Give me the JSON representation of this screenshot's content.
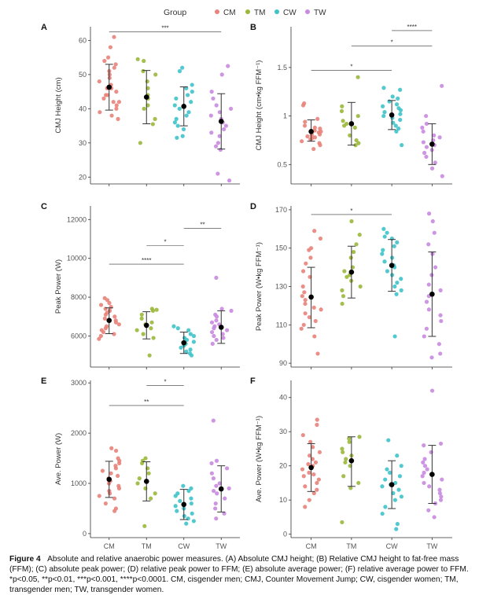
{
  "legend": {
    "title": "Group",
    "groups": [
      "CM",
      "TM",
      "CW",
      "TW"
    ]
  },
  "colors": {
    "CM": "#E8837A",
    "TM": "#9BB83B",
    "CW": "#3EC3C9",
    "TW": "#C98AE0",
    "mean": "#000000",
    "bar": "#333333"
  },
  "chart_data": [
    {
      "type": "scatter",
      "panel": "A",
      "ylabel": "CMJ Height (cm)",
      "categories": [
        "CM",
        "TM",
        "CW",
        "TW"
      ],
      "ylim": [
        18,
        64
      ],
      "yticks": [
        20,
        30,
        40,
        50,
        60
      ],
      "series": [
        {
          "name": "CM",
          "mean": 46.3,
          "lower": 39.6,
          "upper": 53.0,
          "values": [
            61,
            58,
            55,
            54,
            53,
            52,
            51,
            50,
            49,
            48,
            47,
            46,
            46,
            45,
            44,
            44,
            43,
            42,
            42,
            41,
            40,
            39,
            38,
            37
          ]
        },
        {
          "name": "TM",
          "mean": 43.4,
          "lower": 35.6,
          "upper": 51.2,
          "values": [
            54.5,
            54,
            51,
            50,
            48,
            46,
            44,
            43,
            41,
            40,
            37,
            35.5,
            30
          ]
        },
        {
          "name": "CW",
          "mean": 40.7,
          "lower": 35.0,
          "upper": 46.4,
          "values": [
            52,
            51,
            47,
            46,
            45,
            44,
            43,
            42,
            41,
            40,
            39,
            38,
            37,
            36,
            35,
            34,
            32,
            31.5
          ]
        },
        {
          "name": "TW",
          "mean": 36.3,
          "lower": 28.2,
          "upper": 44.4,
          "values": [
            52.5,
            50,
            45,
            43,
            41,
            40,
            39,
            38,
            37,
            36,
            35,
            34,
            33,
            32,
            30,
            29,
            28,
            21,
            19
          ]
        }
      ],
      "brackets": [
        {
          "from": "CM",
          "to": "TW",
          "y": 62.5,
          "label": "***"
        }
      ]
    },
    {
      "type": "scatter",
      "panel": "B",
      "ylabel": "CMJ Height (cm•kg FFM⁻¹)",
      "categories": [
        "CM",
        "TM",
        "CW",
        "TW"
      ],
      "ylim": [
        0.3,
        1.92
      ],
      "yticks": [
        0.5,
        1.0,
        1.5
      ],
      "series": [
        {
          "name": "CM",
          "mean": 0.84,
          "lower": 0.74,
          "upper": 0.96,
          "values": [
            1.13,
            1.11,
            0.97,
            0.94,
            0.9,
            0.88,
            0.87,
            0.85,
            0.84,
            0.83,
            0.82,
            0.81,
            0.8,
            0.79,
            0.78,
            0.77,
            0.76,
            0.74,
            0.72,
            0.7,
            0.66
          ]
        },
        {
          "name": "TM",
          "mean": 0.92,
          "lower": 0.7,
          "upper": 1.14,
          "values": [
            1.4,
            1.1,
            1.05,
            1.0,
            0.95,
            0.92,
            0.9,
            0.88,
            0.8,
            0.75,
            0.72,
            0.7
          ]
        },
        {
          "name": "CW",
          "mean": 1.01,
          "lower": 0.86,
          "upper": 1.16,
          "values": [
            1.29,
            1.27,
            1.2,
            1.18,
            1.15,
            1.12,
            1.1,
            1.08,
            1.06,
            1.04,
            1.02,
            1.0,
            0.98,
            0.96,
            0.93,
            0.9,
            0.87,
            0.84,
            0.7
          ]
        },
        {
          "name": "TW",
          "mean": 0.71,
          "lower": 0.5,
          "upper": 0.92,
          "values": [
            1.31,
            1.0,
            0.92,
            0.88,
            0.84,
            0.8,
            0.78,
            0.75,
            0.73,
            0.7,
            0.68,
            0.65,
            0.62,
            0.58,
            0.52,
            0.46,
            0.38
          ]
        }
      ],
      "brackets": [
        {
          "from": "CM",
          "to": "CW",
          "y": 1.47,
          "label": "*"
        },
        {
          "from": "TM",
          "to": "TW",
          "y": 1.72,
          "label": "*"
        },
        {
          "from": "CW",
          "to": "TW",
          "y": 1.88,
          "label": "****"
        }
      ]
    },
    {
      "type": "scatter",
      "panel": "C",
      "ylabel": "Peak Power (W)",
      "categories": [
        "CM",
        "TM",
        "CW",
        "TW"
      ],
      "ylim": [
        4400,
        12700
      ],
      "yticks": [
        6000,
        8000,
        10000,
        12000
      ],
      "series": [
        {
          "name": "CM",
          "mean": 6800,
          "lower": 6120,
          "upper": 7450,
          "values": [
            7950,
            7850,
            7700,
            7600,
            7500,
            7400,
            7300,
            7200,
            7100,
            7000,
            6900,
            6800,
            6700,
            6600,
            6500,
            6400,
            6300,
            6200,
            6100,
            6000,
            5850
          ]
        },
        {
          "name": "TM",
          "mean": 6550,
          "lower": 5850,
          "upper": 7250,
          "values": [
            7400,
            7350,
            7300,
            7100,
            6900,
            6700,
            6600,
            6400,
            6300,
            6100,
            5900,
            5000
          ]
        },
        {
          "name": "CW",
          "mean": 5650,
          "lower": 5100,
          "upper": 6200,
          "values": [
            6500,
            6400,
            6300,
            6100,
            6000,
            5900,
            5800,
            5700,
            5600,
            5500,
            5400,
            5300,
            5200,
            5100,
            5000
          ]
        },
        {
          "name": "TW",
          "mean": 6450,
          "lower": 5620,
          "upper": 7300,
          "values": [
            9000,
            7400,
            7300,
            7100,
            7000,
            6800,
            6700,
            6600,
            6500,
            6400,
            6300,
            6200,
            6100,
            6000,
            5900,
            5800,
            5600
          ]
        }
      ],
      "brackets": [
        {
          "from": "CM",
          "to": "CW",
          "y": 9700,
          "label": "****"
        },
        {
          "from": "TM",
          "to": "CW",
          "y": 10650,
          "label": "*"
        },
        {
          "from": "CW",
          "to": "TW",
          "y": 11550,
          "label": "**"
        }
      ]
    },
    {
      "type": "scatter",
      "panel": "D",
      "ylabel": "Peak Power (W•kg FFM⁻¹)",
      "categories": [
        "CM",
        "TM",
        "CW",
        "TW"
      ],
      "ylim": [
        88,
        172
      ],
      "yticks": [
        90,
        110,
        130,
        150,
        170
      ],
      "series": [
        {
          "name": "CM",
          "mean": 124.5,
          "lower": 108.5,
          "upper": 140.0,
          "values": [
            159,
            155,
            150,
            149,
            145,
            142,
            138,
            135,
            130,
            127,
            125,
            123,
            121,
            119,
            118,
            116,
            114,
            112,
            110,
            108,
            104,
            95
          ]
        },
        {
          "name": "TM",
          "mean": 137.5,
          "lower": 124.0,
          "upper": 151.0,
          "values": [
            164,
            157,
            152,
            148,
            145,
            140,
            138,
            136,
            135,
            133,
            130,
            128,
            125,
            121
          ]
        },
        {
          "name": "CW",
          "mean": 141.0,
          "lower": 127.5,
          "upper": 154.5,
          "values": [
            160,
            158,
            156,
            155,
            153,
            151,
            149,
            147,
            145,
            143,
            141,
            140,
            138,
            136,
            134,
            132,
            130,
            128,
            126,
            104
          ]
        },
        {
          "name": "TW",
          "mean": 126.0,
          "lower": 104.0,
          "upper": 148.0,
          "values": [
            168,
            164,
            158,
            152,
            147,
            140,
            136,
            131,
            128,
            125,
            122,
            118,
            115,
            112,
            108,
            104,
            100,
            95,
            93
          ]
        }
      ],
      "brackets": [
        {
          "from": "CM",
          "to": "CW",
          "y": 167.5,
          "label": "*"
        }
      ]
    },
    {
      "type": "scatter",
      "panel": "E",
      "ylabel": "Ave. Power (W)",
      "categories": [
        "CM",
        "TM",
        "CW",
        "TW"
      ],
      "ylim": [
        -80,
        3050
      ],
      "yticks": [
        0,
        1000,
        2000,
        3000
      ],
      "series": [
        {
          "name": "CM",
          "mean": 1080,
          "lower": 720,
          "upper": 1440,
          "values": [
            1700,
            1650,
            1500,
            1450,
            1400,
            1350,
            1300,
            1250,
            1200,
            1150,
            1100,
            1050,
            1000,
            950,
            900,
            850,
            800,
            750,
            700,
            600,
            500,
            450
          ]
        },
        {
          "name": "TM",
          "mean": 1040,
          "lower": 650,
          "upper": 1430,
          "values": [
            1500,
            1450,
            1400,
            1300,
            1200,
            1100,
            1000,
            900,
            800,
            700,
            150
          ]
        },
        {
          "name": "CW",
          "mean": 580,
          "lower": 280,
          "upper": 880,
          "values": [
            950,
            900,
            850,
            800,
            750,
            700,
            650,
            600,
            550,
            500,
            450,
            400,
            350,
            300,
            250,
            200
          ]
        },
        {
          "name": "TW",
          "mean": 890,
          "lower": 430,
          "upper": 1350,
          "values": [
            2250,
            1450,
            1400,
            1300,
            1200,
            1100,
            1000,
            950,
            900,
            850,
            800,
            700,
            600,
            500,
            400,
            300
          ]
        }
      ],
      "brackets": [
        {
          "from": "CM",
          "to": "CW",
          "y": 2550,
          "label": "**"
        },
        {
          "from": "TM",
          "to": "CW",
          "y": 2950,
          "label": "*"
        }
      ]
    },
    {
      "type": "scatter",
      "panel": "F",
      "ylabel": "Ave. Power (W•kg FFM⁻¹)",
      "categories": [
        "CM",
        "TM",
        "CW",
        "TW"
      ],
      "ylim": [
        -1,
        45
      ],
      "yticks": [
        0,
        10,
        20,
        30,
        40
      ],
      "series": [
        {
          "name": "CM",
          "mean": 19.5,
          "lower": 12.5,
          "upper": 26.5,
          "values": [
            33.5,
            32,
            29,
            27,
            25.5,
            24,
            23,
            22,
            21,
            20.5,
            20,
            19,
            18,
            17.5,
            17,
            16,
            15,
            14,
            13,
            12,
            10,
            8
          ]
        },
        {
          "name": "TM",
          "mean": 21.5,
          "lower": 14.0,
          "upper": 28.5,
          "values": [
            28.5,
            28,
            27,
            25,
            24,
            23,
            22,
            21,
            20,
            17,
            15,
            13.5,
            3.5
          ]
        },
        {
          "name": "CW",
          "mean": 14.5,
          "lower": 7.5,
          "upper": 21.5,
          "values": [
            27.5,
            23,
            20,
            19,
            18,
            17,
            16,
            15,
            14.5,
            14,
            13,
            12,
            11,
            10,
            8,
            6,
            3,
            1.5
          ]
        },
        {
          "name": "TW",
          "mean": 17.5,
          "lower": 9.0,
          "upper": 26.0,
          "values": [
            42,
            26.5,
            26,
            24,
            22,
            21,
            20,
            19,
            18,
            17,
            16,
            15,
            14,
            13,
            12,
            11,
            10,
            9,
            7,
            5
          ]
        }
      ],
      "brackets": []
    }
  ],
  "caption": {
    "label": "Figure 4",
    "text": "Absolute and relative anaerobic power measures. (A) Absolute CMJ height; (B) Relative CMJ height to fat-free mass (FFM); (C) absolute peak power; (D) relative peak power to FFM; (E) absolute average power; (F) relative average power to FFM. *p<0.05, **p<0.01, ***p<0.001, ****p<0.0001. CM, cisgender men; CMJ, Counter Movement Jump; CW, cisgender women; TM, transgender men; TW, transgender women."
  }
}
